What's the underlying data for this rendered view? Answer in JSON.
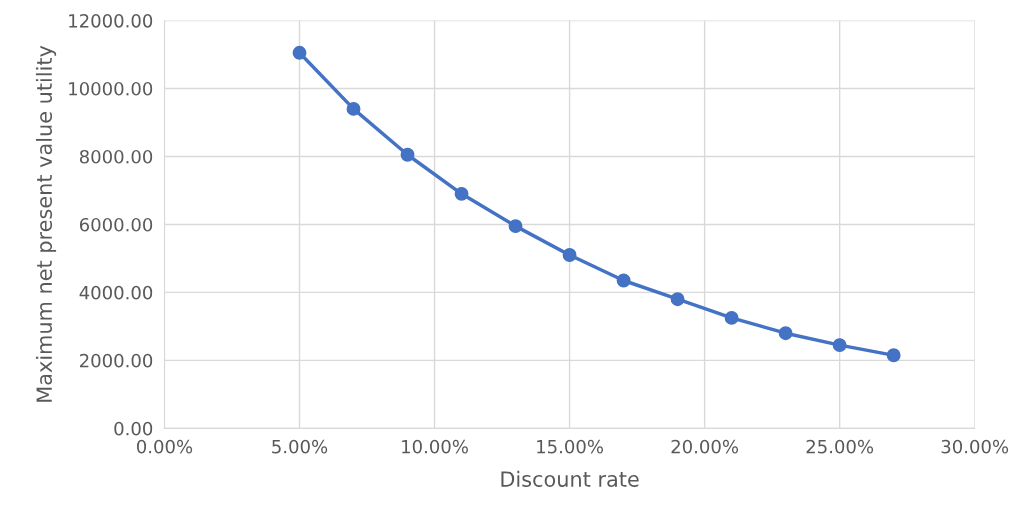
{
  "chart_data": {
    "type": "line",
    "xlabel": "Discount rate",
    "ylabel": "Maximum net present value utility",
    "x": [
      5,
      7,
      9,
      11,
      13,
      15,
      17,
      19,
      21,
      23,
      25,
      27
    ],
    "series": [
      {
        "color": "#4472c4",
        "values": [
          11050,
          9400,
          8050,
          6900,
          5950,
          5100,
          4350,
          3800,
          3250,
          2800,
          2450,
          2150
        ]
      }
    ],
    "xlim": [
      0,
      30
    ],
    "xticks": [
      {
        "value": 0,
        "label": "0.00%"
      },
      {
        "value": 5,
        "label": "5.00%"
      },
      {
        "value": 10,
        "label": "10.00%"
      },
      {
        "value": 15,
        "label": "15.00%"
      },
      {
        "value": 20,
        "label": "20.00%"
      },
      {
        "value": 25,
        "label": "25.00%"
      },
      {
        "value": 30,
        "label": "30.00%"
      }
    ],
    "ylim": [
      0,
      12000
    ],
    "yticks": [
      {
        "value": 0,
        "label": "0.00"
      },
      {
        "value": 2000,
        "label": "2000.00"
      },
      {
        "value": 4000,
        "label": "4000.00"
      },
      {
        "value": 6000,
        "label": "6000.00"
      },
      {
        "value": 8000,
        "label": "8000.00"
      },
      {
        "value": 10000,
        "label": "10000.00"
      },
      {
        "value": 12000,
        "label": "12000.00"
      }
    ],
    "grid": true,
    "marker": "circle",
    "line_style": "solid"
  }
}
